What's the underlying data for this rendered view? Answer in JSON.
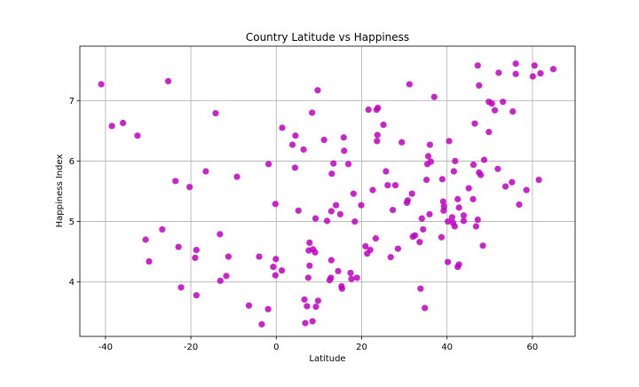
{
  "chart_data": {
    "type": "scatter",
    "title": "Country Latitude vs Happiness",
    "xlabel": "Latitude",
    "ylabel": "Happiness Index",
    "xlim": [
      -46,
      70
    ],
    "ylim": [
      3.1,
      7.9
    ],
    "xticks": [
      -40,
      -20,
      0,
      20,
      40,
      60
    ],
    "yticks": [
      4,
      5,
      6,
      7
    ],
    "grid": true,
    "color": "#bf00bf",
    "points": [
      [
        -41,
        7.27
      ],
      [
        -38.5,
        6.58
      ],
      [
        -35.9,
        6.63
      ],
      [
        -32.5,
        6.42
      ],
      [
        -30.6,
        4.7
      ],
      [
        -29.8,
        4.34
      ],
      [
        -26.7,
        4.87
      ],
      [
        -25.3,
        7.32
      ],
      [
        -23.6,
        5.67
      ],
      [
        -22.9,
        4.58
      ],
      [
        -22.3,
        3.91
      ],
      [
        -20.3,
        5.57
      ],
      [
        -19,
        4.4
      ],
      [
        -18.7,
        4.53
      ],
      [
        -18.7,
        3.78
      ],
      [
        -16.5,
        5.83
      ],
      [
        -14.2,
        6.79
      ],
      [
        -13.2,
        4.79
      ],
      [
        -13.1,
        4.02
      ],
      [
        -11.7,
        4.1
      ],
      [
        -11.2,
        4.42
      ],
      [
        -9.2,
        5.74
      ],
      [
        -6.4,
        3.61
      ],
      [
        -4,
        4.42
      ],
      [
        -3.4,
        3.3
      ],
      [
        -1.9,
        3.55
      ],
      [
        -1.8,
        5.95
      ],
      [
        -0.7,
        4.25
      ],
      [
        -0.2,
        5.29
      ],
      [
        -0.1,
        4.38
      ],
      [
        -0.2,
        4.11
      ],
      [
        1.3,
        4.19
      ],
      [
        1.4,
        6.55
      ],
      [
        3.8,
        6.27
      ],
      [
        4.4,
        5.89
      ],
      [
        4.5,
        6.42
      ],
      [
        5.2,
        5.18
      ],
      [
        6.4,
        6.19
      ],
      [
        6.6,
        3.71
      ],
      [
        6.8,
        3.32
      ],
      [
        7.2,
        3.6
      ],
      [
        7.5,
        4.07
      ],
      [
        7.6,
        4.52
      ],
      [
        7.8,
        4.27
      ],
      [
        7.8,
        4.65
      ],
      [
        8.4,
        6.8
      ],
      [
        8.5,
        3.35
      ],
      [
        8.6,
        4.54
      ],
      [
        9.1,
        4.49
      ],
      [
        9.2,
        5.05
      ],
      [
        9.3,
        3.59
      ],
      [
        9.7,
        7.17
      ],
      [
        9.8,
        3.69
      ],
      [
        11.2,
        6.35
      ],
      [
        11.9,
        5.01
      ],
      [
        12.5,
        4.03
      ],
      [
        12.8,
        4.07
      ],
      [
        12.9,
        5.17
      ],
      [
        12.9,
        4.36
      ],
      [
        13,
        5.79
      ],
      [
        13.4,
        5.96
      ],
      [
        14,
        5.27
      ],
      [
        14.5,
        4.18
      ],
      [
        15,
        5.12
      ],
      [
        15.3,
        3.93
      ],
      [
        15.4,
        3.89
      ],
      [
        15.8,
        6.39
      ],
      [
        15.9,
        6.17
      ],
      [
        16.9,
        5.95
      ],
      [
        17.4,
        4.15
      ],
      [
        17.6,
        4.05
      ],
      [
        18.1,
        5.46
      ],
      [
        18.4,
        5.0
      ],
      [
        18.9,
        4.07
      ],
      [
        19.9,
        5.27
      ],
      [
        20.9,
        4.59
      ],
      [
        21.3,
        4.47
      ],
      [
        21.6,
        6.85
      ],
      [
        22,
        4.53
      ],
      [
        22.6,
        5.52
      ],
      [
        23.3,
        4.72
      ],
      [
        23.5,
        6.85
      ],
      [
        23.6,
        6.33
      ],
      [
        23.7,
        6.43
      ],
      [
        23.8,
        6.88
      ],
      [
        25.1,
        6.6
      ],
      [
        25.7,
        5.83
      ],
      [
        26.1,
        5.6
      ],
      [
        26.8,
        4.41
      ],
      [
        27.3,
        5.19
      ],
      [
        27.9,
        5.6
      ],
      [
        28.5,
        4.55
      ],
      [
        29.4,
        6.31
      ],
      [
        30.6,
        5.31
      ],
      [
        30.8,
        5.35
      ],
      [
        31.2,
        7.27
      ],
      [
        31.8,
        5.46
      ],
      [
        32,
        4.75
      ],
      [
        32.5,
        4.77
      ],
      [
        33.6,
        4.66
      ],
      [
        33.8,
        3.89
      ],
      [
        34.1,
        5.05
      ],
      [
        34.4,
        4.87
      ],
      [
        34.8,
        3.57
      ],
      [
        35.2,
        5.69
      ],
      [
        35.4,
        5.95
      ],
      [
        35.6,
        6.08
      ],
      [
        35.9,
        5.12
      ],
      [
        36,
        6.27
      ],
      [
        36.2,
        5.99
      ],
      [
        37,
        7.06
      ],
      [
        38.7,
        4.74
      ],
      [
        38.9,
        5.7
      ],
      [
        39.1,
        5.33
      ],
      [
        39.2,
        5.18
      ],
      [
        39.3,
        5.25
      ],
      [
        40.2,
        5.0
      ],
      [
        40.2,
        4.33
      ],
      [
        40.5,
        6.33
      ],
      [
        41.2,
        5.07
      ],
      [
        41.4,
        4.98
      ],
      [
        41.6,
        5.83
      ],
      [
        41.8,
        4.92
      ],
      [
        41.9,
        6.0
      ],
      [
        42.5,
        5.37
      ],
      [
        42.5,
        4.25
      ],
      [
        42.8,
        4.29
      ],
      [
        42.8,
        5.23
      ],
      [
        43.9,
        5.1
      ],
      [
        43.9,
        5.01
      ],
      [
        45.1,
        5.55
      ],
      [
        46.1,
        5.37
      ],
      [
        46.2,
        5.94
      ],
      [
        46.5,
        6.62
      ],
      [
        46.8,
        4.92
      ],
      [
        47.2,
        5.03
      ],
      [
        47.2,
        7.58
      ],
      [
        47.5,
        5.81
      ],
      [
        47.5,
        7.25
      ],
      [
        47.9,
        5.77
      ],
      [
        48.4,
        4.6
      ],
      [
        48.7,
        6.02
      ],
      [
        49.8,
        6.48
      ],
      [
        49.8,
        6.98
      ],
      [
        50.5,
        6.95
      ],
      [
        51.2,
        6.84
      ],
      [
        51.9,
        5.87
      ],
      [
        52.1,
        7.46
      ],
      [
        53.1,
        6.98
      ],
      [
        53.7,
        5.58
      ],
      [
        55.2,
        5.65
      ],
      [
        55.4,
        6.82
      ],
      [
        56.1,
        7.44
      ],
      [
        56.1,
        7.61
      ],
      [
        56.9,
        5.28
      ],
      [
        58.6,
        5.52
      ],
      [
        60.1,
        7.4
      ],
      [
        60.5,
        7.58
      ],
      [
        61.5,
        5.69
      ],
      [
        61.9,
        7.45
      ],
      [
        64.9,
        7.52
      ]
    ]
  }
}
